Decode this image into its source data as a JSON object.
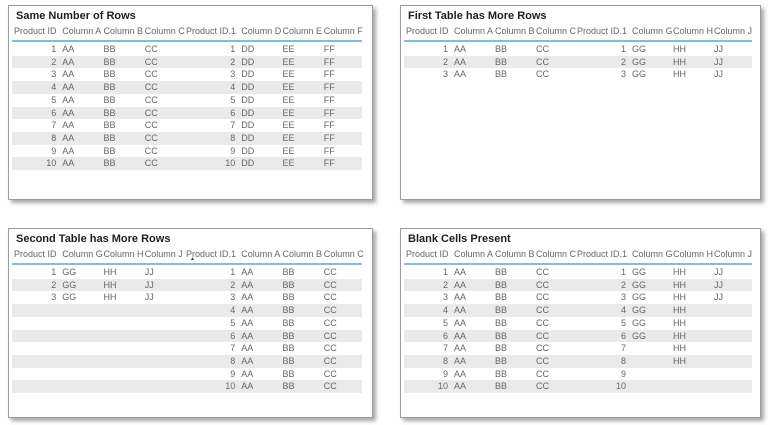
{
  "colors": {
    "page_bg": "#ffffff",
    "card_bg": "#ffffff",
    "card_border": "#9c9c9c",
    "header_underline": "#7fbce6",
    "row_stripe": "#eaeaea",
    "header_text": "#666666",
    "body_text": "#666666",
    "title_text": "#1f1f1f"
  },
  "icons": {
    "sort_ascending": "▲"
  },
  "cards": [
    {
      "title": "Same Number of Rows",
      "columns": [
        {
          "label": "Product ID",
          "align": "right"
        },
        {
          "label": "Column A",
          "align": "left"
        },
        {
          "label": "Column B",
          "align": "left"
        },
        {
          "label": "Column C",
          "align": "left"
        },
        {
          "label": "Product ID.1",
          "align": "right"
        },
        {
          "label": "Column D",
          "align": "left"
        },
        {
          "label": "Column E",
          "align": "left"
        },
        {
          "label": "Column F",
          "align": "left"
        }
      ],
      "sort": null,
      "rows": [
        [
          "1",
          "AA",
          "BB",
          "CC",
          "1",
          "DD",
          "EE",
          "FF"
        ],
        [
          "2",
          "AA",
          "BB",
          "CC",
          "2",
          "DD",
          "EE",
          "FF"
        ],
        [
          "3",
          "AA",
          "BB",
          "CC",
          "3",
          "DD",
          "EE",
          "FF"
        ],
        [
          "4",
          "AA",
          "BB",
          "CC",
          "4",
          "DD",
          "EE",
          "FF"
        ],
        [
          "5",
          "AA",
          "BB",
          "CC",
          "5",
          "DD",
          "EE",
          "FF"
        ],
        [
          "6",
          "AA",
          "BB",
          "CC",
          "6",
          "DD",
          "EE",
          "FF"
        ],
        [
          "7",
          "AA",
          "BB",
          "CC",
          "7",
          "DD",
          "EE",
          "FF"
        ],
        [
          "8",
          "AA",
          "BB",
          "CC",
          "8",
          "DD",
          "EE",
          "FF"
        ],
        [
          "9",
          "AA",
          "BB",
          "CC",
          "9",
          "DD",
          "EE",
          "FF"
        ],
        [
          "10",
          "AA",
          "BB",
          "CC",
          "10",
          "DD",
          "EE",
          "FF"
        ]
      ]
    },
    {
      "title": "First Table has More Rows",
      "columns": [
        {
          "label": "Product ID",
          "align": "right"
        },
        {
          "label": "Column A",
          "align": "left"
        },
        {
          "label": "Column B",
          "align": "left"
        },
        {
          "label": "Column C",
          "align": "left"
        },
        {
          "label": "Product ID.1",
          "align": "right"
        },
        {
          "label": "Column G",
          "align": "left"
        },
        {
          "label": "Column H",
          "align": "left"
        },
        {
          "label": "Column J",
          "align": "left"
        }
      ],
      "sort": null,
      "rows": [
        [
          "1",
          "AA",
          "BB",
          "CC",
          "1",
          "GG",
          "HH",
          "JJ"
        ],
        [
          "2",
          "AA",
          "BB",
          "CC",
          "2",
          "GG",
          "HH",
          "JJ"
        ],
        [
          "3",
          "AA",
          "BB",
          "CC",
          "3",
          "GG",
          "HH",
          "JJ"
        ]
      ]
    },
    {
      "title": "Second Table has More Rows",
      "columns": [
        {
          "label": "Product ID",
          "align": "right"
        },
        {
          "label": "Column G",
          "align": "left"
        },
        {
          "label": "Column H",
          "align": "left"
        },
        {
          "label": "Column J",
          "align": "left"
        },
        {
          "label": "Product ID.1",
          "align": "right"
        },
        {
          "label": "Column A",
          "align": "left"
        },
        {
          "label": "Column B",
          "align": "left"
        },
        {
          "label": "Column C",
          "align": "left"
        }
      ],
      "sort": {
        "column": 4,
        "direction": "ascending"
      },
      "rows": [
        [
          "1",
          "GG",
          "HH",
          "JJ",
          "1",
          "AA",
          "BB",
          "CC"
        ],
        [
          "2",
          "GG",
          "HH",
          "JJ",
          "2",
          "AA",
          "BB",
          "CC"
        ],
        [
          "3",
          "GG",
          "HH",
          "JJ",
          "3",
          "AA",
          "BB",
          "CC"
        ],
        [
          "",
          "",
          "",
          "",
          "4",
          "AA",
          "BB",
          "CC"
        ],
        [
          "",
          "",
          "",
          "",
          "5",
          "AA",
          "BB",
          "CC"
        ],
        [
          "",
          "",
          "",
          "",
          "6",
          "AA",
          "BB",
          "CC"
        ],
        [
          "",
          "",
          "",
          "",
          "7",
          "AA",
          "BB",
          "CC"
        ],
        [
          "",
          "",
          "",
          "",
          "8",
          "AA",
          "BB",
          "CC"
        ],
        [
          "",
          "",
          "",
          "",
          "9",
          "AA",
          "BB",
          "CC"
        ],
        [
          "",
          "",
          "",
          "",
          "10",
          "AA",
          "BB",
          "CC"
        ]
      ]
    },
    {
      "title": "Blank Cells Present",
      "columns": [
        {
          "label": "Product ID",
          "align": "right"
        },
        {
          "label": "Column A",
          "align": "left"
        },
        {
          "label": "Column B",
          "align": "left"
        },
        {
          "label": "Column C",
          "align": "left"
        },
        {
          "label": "Product ID.1",
          "align": "right"
        },
        {
          "label": "Column G",
          "align": "left"
        },
        {
          "label": "Column H",
          "align": "left"
        },
        {
          "label": "Column J",
          "align": "left"
        }
      ],
      "sort": null,
      "rows": [
        [
          "1",
          "AA",
          "BB",
          "CC",
          "1",
          "GG",
          "HH",
          "JJ"
        ],
        [
          "2",
          "AA",
          "BB",
          "CC",
          "2",
          "GG",
          "HH",
          "JJ"
        ],
        [
          "3",
          "AA",
          "BB",
          "CC",
          "3",
          "GG",
          "HH",
          "JJ"
        ],
        [
          "4",
          "AA",
          "BB",
          "CC",
          "4",
          "GG",
          "HH",
          ""
        ],
        [
          "5",
          "AA",
          "BB",
          "CC",
          "5",
          "GG",
          "HH",
          ""
        ],
        [
          "6",
          "AA",
          "BB",
          "CC",
          "6",
          "GG",
          "HH",
          ""
        ],
        [
          "7",
          "AA",
          "BB",
          "CC",
          "7",
          "",
          "HH",
          ""
        ],
        [
          "8",
          "AA",
          "BB",
          "CC",
          "8",
          "",
          "HH",
          ""
        ],
        [
          "9",
          "AA",
          "BB",
          "CC",
          "9",
          "",
          "",
          ""
        ],
        [
          "10",
          "AA",
          "BB",
          "CC",
          "10",
          "",
          "",
          ""
        ]
      ]
    }
  ]
}
